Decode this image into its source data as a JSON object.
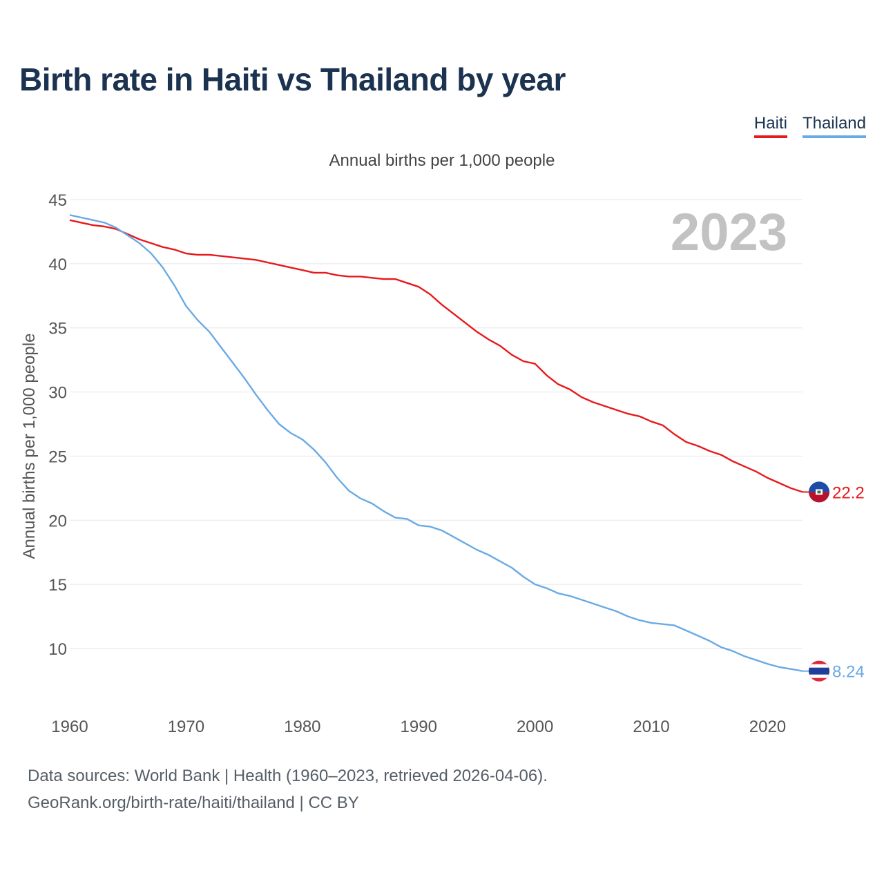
{
  "chart_data": {
    "type": "line",
    "title": "Birth rate in Haiti vs Thailand by year",
    "subtitle": "Annual births per 1,000 people",
    "ylabel": "Annual births per 1,000 people",
    "xlabel": "",
    "year_label": "2023",
    "x": [
      1960,
      1961,
      1962,
      1963,
      1964,
      1965,
      1966,
      1967,
      1968,
      1969,
      1970,
      1971,
      1972,
      1973,
      1974,
      1975,
      1976,
      1977,
      1978,
      1979,
      1980,
      1981,
      1982,
      1983,
      1984,
      1985,
      1986,
      1987,
      1988,
      1989,
      1990,
      1991,
      1992,
      1993,
      1994,
      1995,
      1996,
      1997,
      1998,
      1999,
      2000,
      2001,
      2002,
      2003,
      2004,
      2005,
      2006,
      2007,
      2008,
      2009,
      2010,
      2011,
      2012,
      2013,
      2014,
      2015,
      2016,
      2017,
      2018,
      2019,
      2020,
      2021,
      2022,
      2023
    ],
    "xlim": [
      1960,
      2023
    ],
    "ylim": [
      6,
      45
    ],
    "xticks": [
      1960,
      1970,
      1980,
      1990,
      2000,
      2010,
      2020
    ],
    "yticks": [
      10,
      15,
      20,
      25,
      30,
      35,
      40,
      45
    ],
    "series": [
      {
        "name": "Haiti",
        "color": "#e8191c",
        "end_label": "22.2",
        "flag": "haiti",
        "values": [
          43.4,
          43.2,
          43.0,
          42.9,
          42.7,
          42.3,
          41.9,
          41.6,
          41.3,
          41.1,
          40.8,
          40.7,
          40.7,
          40.6,
          40.5,
          40.4,
          40.3,
          40.1,
          39.9,
          39.7,
          39.5,
          39.3,
          39.3,
          39.1,
          39.0,
          39.0,
          38.9,
          38.8,
          38.8,
          38.5,
          38.2,
          37.6,
          36.8,
          36.1,
          35.4,
          34.7,
          34.1,
          33.6,
          32.9,
          32.4,
          32.2,
          31.3,
          30.6,
          30.2,
          29.6,
          29.2,
          28.9,
          28.6,
          28.3,
          28.1,
          27.7,
          27.4,
          26.7,
          26.1,
          25.8,
          25.4,
          25.1,
          24.6,
          24.2,
          23.8,
          23.3,
          22.9,
          22.5,
          22.2
        ]
      },
      {
        "name": "Thailand",
        "color": "#6aaae4",
        "end_label": "8.24",
        "flag": "thailand",
        "values": [
          43.8,
          43.6,
          43.4,
          43.2,
          42.8,
          42.2,
          41.6,
          40.8,
          39.7,
          38.3,
          36.7,
          35.6,
          34.7,
          33.5,
          32.3,
          31.1,
          29.8,
          28.6,
          27.5,
          26.8,
          26.3,
          25.5,
          24.5,
          23.3,
          22.3,
          21.7,
          21.3,
          20.7,
          20.2,
          20.1,
          19.6,
          19.5,
          19.2,
          18.7,
          18.2,
          17.7,
          17.3,
          16.8,
          16.3,
          15.6,
          15.0,
          14.7,
          14.3,
          14.1,
          13.8,
          13.5,
          13.2,
          12.9,
          12.5,
          12.2,
          12.0,
          11.9,
          11.8,
          11.4,
          11.0,
          10.6,
          10.1,
          9.8,
          9.4,
          9.1,
          8.8,
          8.55,
          8.4,
          8.24
        ]
      }
    ]
  },
  "footer": {
    "line1": "Data sources: World Bank | Health (1960–2023, retrieved 2026-04-06).",
    "line2": "GeoRank.org/birth-rate/haiti/thailand | CC BY"
  }
}
